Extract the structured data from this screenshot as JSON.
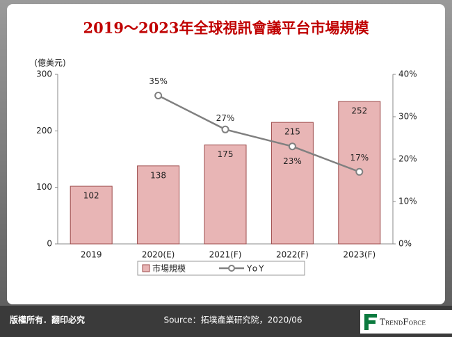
{
  "chart_data": {
    "type": "bar",
    "title": "2019～2023年全球視訊會議平台市場規模",
    "y_label": "(億美元)",
    "categories": [
      "2019",
      "2020(E)",
      "2021(F)",
      "2022(F)",
      "2023(F)"
    ],
    "series": [
      {
        "name": "市場規模",
        "type": "bar",
        "color": "#e8b5b5",
        "values": [
          102,
          138,
          175,
          215,
          252
        ]
      },
      {
        "name": "YoY",
        "type": "line",
        "color": "#808080",
        "axis": "y2",
        "values": [
          null,
          35,
          27,
          23,
          17
        ],
        "value_labels": [
          null,
          "35%",
          "27%",
          "23%",
          "17%"
        ]
      }
    ],
    "ylim": [
      0,
      300
    ],
    "yticks": [
      0,
      100,
      200,
      300
    ],
    "y2lim": [
      0,
      40
    ],
    "y2ticks": [
      {
        "value": 0,
        "label": "0%"
      },
      {
        "value": 10,
        "label": "10%"
      },
      {
        "value": 20,
        "label": "20%"
      },
      {
        "value": 30,
        "label": "30%"
      },
      {
        "value": 40,
        "label": "40%"
      }
    ]
  },
  "footer": {
    "copyright": "版權所有．翻印必究",
    "source": "Source：拓墣產業研究院，2020/06",
    "logo": "TrendForce"
  }
}
